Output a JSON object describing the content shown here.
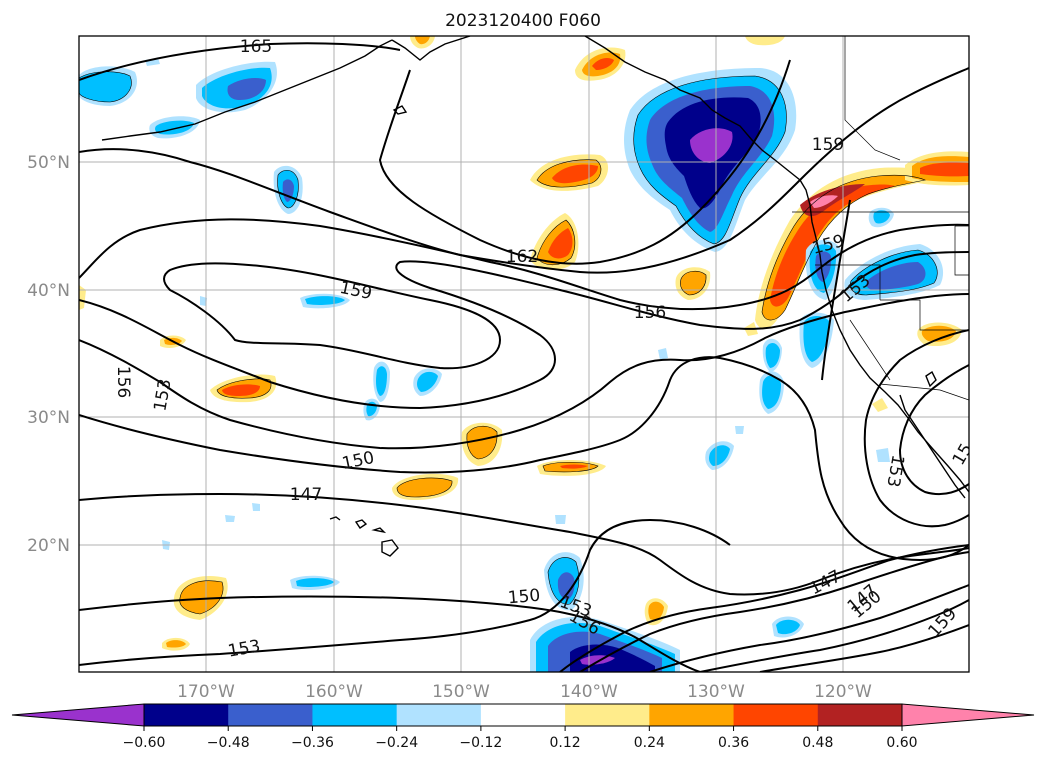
{
  "title": "2023120400 F060",
  "latitude_labels": [
    "50°N",
    "40°N",
    "30°N",
    "20°N"
  ],
  "longitude_labels": [
    "170°W",
    "160°W",
    "150°W",
    "140°W",
    "130°W",
    "120°W"
  ],
  "contour_labels": [
    "165",
    "162",
    "159",
    "159",
    "159",
    "156",
    "156",
    "156",
    "153",
    "153",
    "153",
    "153",
    "153",
    "150",
    "150",
    "150",
    "147",
    "147",
    "147",
    "159",
    "15"
  ],
  "colorbar": {
    "ticks": [
      "−0.60",
      "−0.48",
      "−0.36",
      "−0.24",
      "−0.12",
      "0.12",
      "0.24",
      "0.36",
      "0.48",
      "0.60"
    ],
    "colors": [
      "#9a32cd",
      "#00008b",
      "#3a5fcd",
      "#00bfff",
      "#b0e2ff",
      "#ffffff",
      "#ffec8b",
      "#ffa500",
      "#ff4500",
      "#b22222",
      "#ff82ab"
    ]
  },
  "colors": {
    "contour": "#000000",
    "grid": "#b0b0b0",
    "coast": "#000000"
  }
}
